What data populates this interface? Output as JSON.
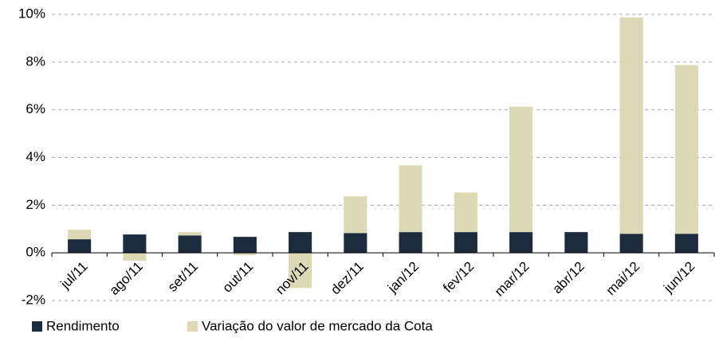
{
  "chart_data": {
    "type": "bar",
    "stacked": true,
    "categories": [
      "jul/11",
      "ago/11",
      "set/11",
      "out/11",
      "nov/11",
      "dez/11",
      "jan/12",
      "fev/12",
      "mar/12",
      "abr/12",
      "mai/12",
      "jun/12"
    ],
    "series": [
      {
        "name": "Rendimento",
        "color": "#1c2b3d",
        "values": [
          0.57,
          0.77,
          0.73,
          0.67,
          0.87,
          0.83,
          0.87,
          0.87,
          0.87,
          0.87,
          0.8,
          0.8
        ]
      },
      {
        "name": "Variação do valor de mercado da Cota",
        "color": "#ddd9b4",
        "values": [
          0.4,
          -0.33,
          0.14,
          -0.1,
          -1.47,
          1.54,
          2.8,
          1.66,
          5.26,
          0,
          9.07,
          7.07
        ]
      }
    ],
    "ylim": [
      -2,
      10
    ],
    "yticks": [
      {
        "value": -2,
        "label": "-2%"
      },
      {
        "value": 0,
        "label": "0%"
      },
      {
        "value": 2,
        "label": "2%"
      },
      {
        "value": 4,
        "label": "4%"
      },
      {
        "value": 6,
        "label": "6%"
      },
      {
        "value": 8,
        "label": "8%"
      },
      {
        "value": 10,
        "label": "10%"
      }
    ],
    "grid": true,
    "legend": "bottom"
  }
}
